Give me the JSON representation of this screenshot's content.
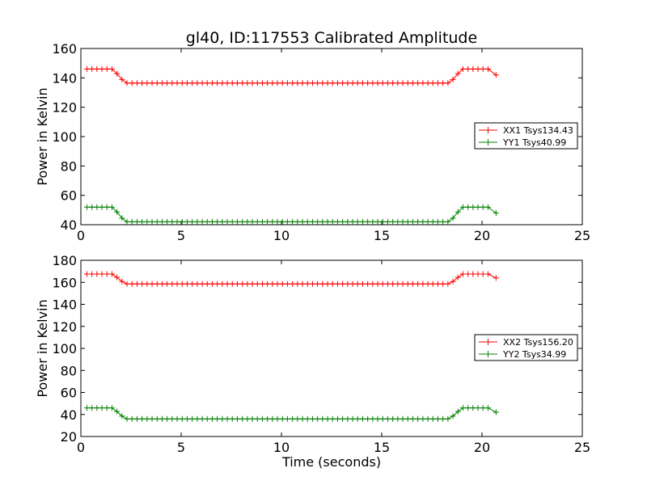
{
  "figure": {
    "title": "gl40, ID:117553 Calibrated Amplitude"
  },
  "chart_data": [
    {
      "type": "line",
      "title": "gl40, ID:117553 Calibrated Amplitude",
      "xlabel": "",
      "ylabel": "Power in Kelvin",
      "xlim": [
        0,
        25
      ],
      "ylim": [
        40,
        160
      ],
      "xticks": [
        0,
        5,
        10,
        15,
        20,
        25
      ],
      "yticks": [
        40,
        60,
        80,
        100,
        120,
        140,
        160
      ],
      "grid": false,
      "marker": "+",
      "legend_position": "center-right",
      "series": [
        {
          "name": "XX1 Tsys134.43",
          "color": "#ff0000",
          "profile": {
            "t_start": 0.3,
            "t_end": 20.7,
            "step": 0.25,
            "high": 146,
            "low": 136.5,
            "ramp_down": [
              1.6,
              2.2
            ],
            "ramp_up": [
              18.4,
              19.0
            ],
            "last": 142
          }
        },
        {
          "name": "YY1 Tsys40.99",
          "color": "#008000",
          "profile": {
            "t_start": 0.3,
            "t_end": 20.7,
            "step": 0.25,
            "high": 52,
            "low": 42,
            "ramp_down": [
              1.6,
              2.2
            ],
            "ramp_up": [
              18.4,
              19.0
            ],
            "last": 48
          }
        }
      ]
    },
    {
      "type": "line",
      "title": "",
      "xlabel": "Time (seconds)",
      "ylabel": "Power in Kelvin",
      "xlim": [
        0,
        25
      ],
      "ylim": [
        20,
        180
      ],
      "xticks": [
        0,
        5,
        10,
        15,
        20,
        25
      ],
      "yticks": [
        20,
        40,
        60,
        80,
        100,
        120,
        140,
        160,
        180
      ],
      "grid": false,
      "marker": "+",
      "legend_position": "center-right",
      "series": [
        {
          "name": "XX2 Tsys156.20",
          "color": "#ff0000",
          "profile": {
            "t_start": 0.3,
            "t_end": 20.7,
            "step": 0.25,
            "high": 167.5,
            "low": 158.5,
            "ramp_down": [
              1.6,
              2.2
            ],
            "ramp_up": [
              18.4,
              19.0
            ],
            "last": 164
          }
        },
        {
          "name": "YY2 Tsys34.99",
          "color": "#008000",
          "profile": {
            "t_start": 0.3,
            "t_end": 20.7,
            "step": 0.25,
            "high": 46,
            "low": 36,
            "ramp_down": [
              1.6,
              2.2
            ],
            "ramp_up": [
              18.4,
              19.0
            ],
            "last": 42
          }
        }
      ]
    }
  ]
}
